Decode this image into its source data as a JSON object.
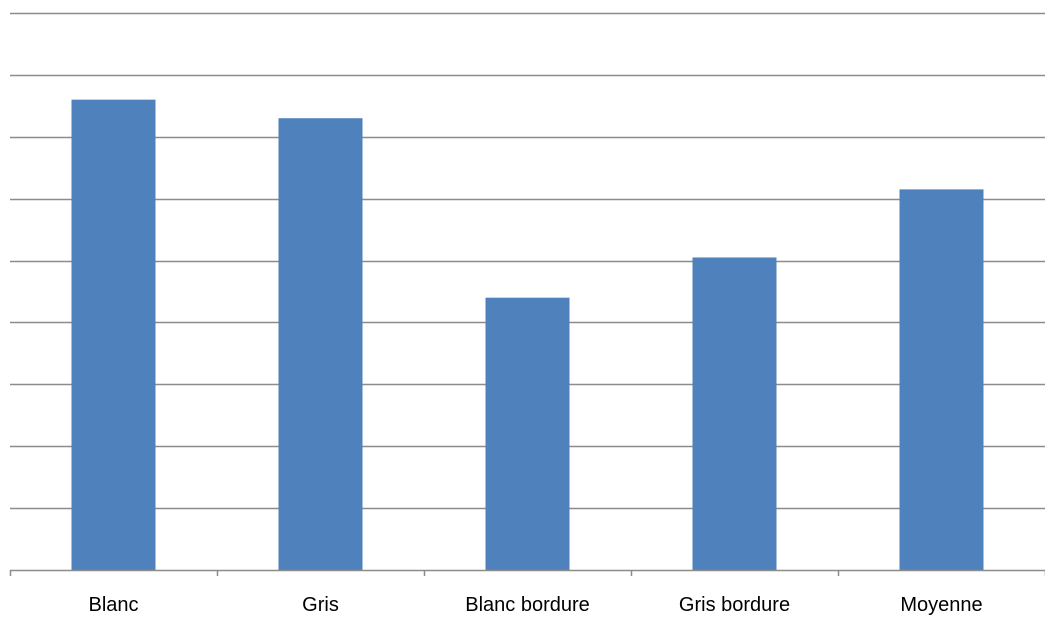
{
  "chart_data": {
    "type": "bar",
    "categories": [
      "Blanc",
      "Gris",
      "Blanc bordure",
      "Gris bordure",
      "Moyenne"
    ],
    "values": [
      7.6,
      7.3,
      4.4,
      5.05,
      6.15
    ],
    "ylim": [
      0,
      9
    ],
    "grid": true,
    "y_tick_labels_shown": false,
    "title": "",
    "xlabel": "",
    "ylabel": "",
    "bar_color": "#4F81BD",
    "grid_color": "#8C8C8C",
    "axis_color": "#8C8C8C"
  }
}
